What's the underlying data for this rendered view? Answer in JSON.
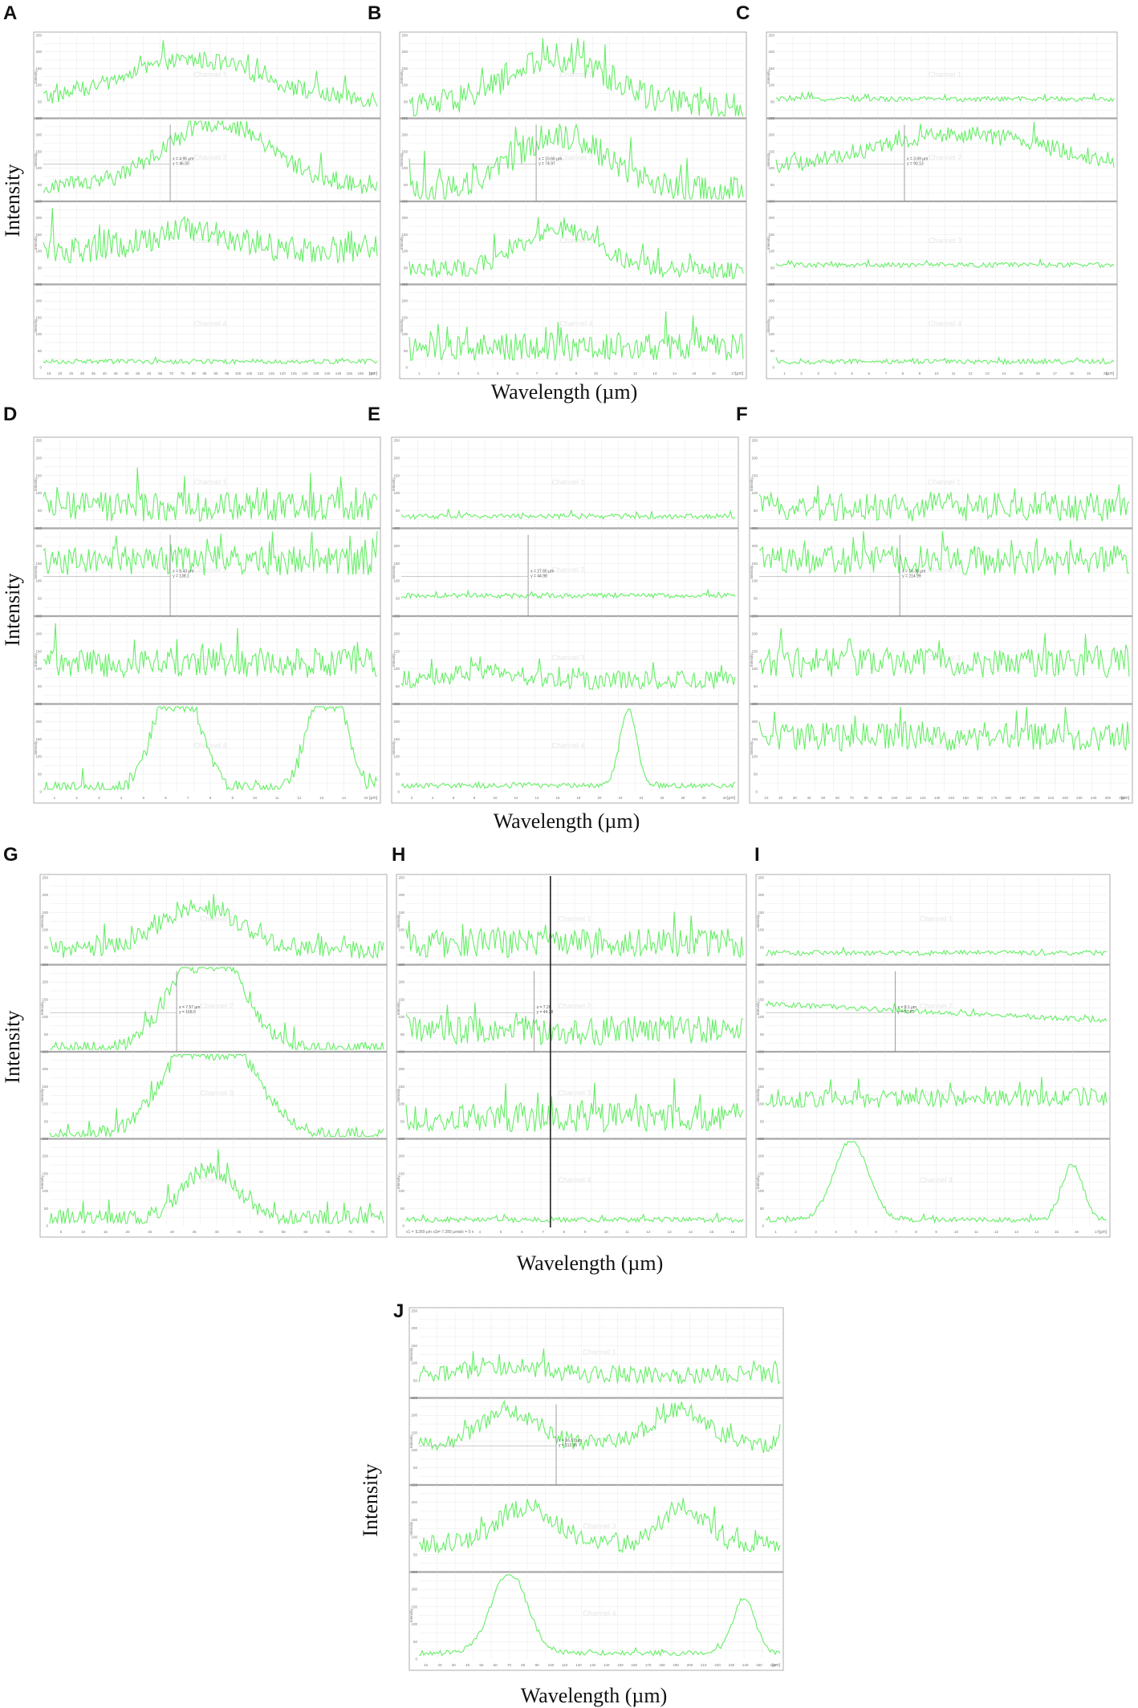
{
  "figure": {
    "line_color": "#66ee66",
    "frame_color": "#999999",
    "grid_color": "#e8e8e8",
    "separator_color": "#a8a8a8"
  },
  "chart_data": [
    {
      "panel": "A",
      "type": "line",
      "n_subplots": 4,
      "profiles": [
        "broad hump, moderate",
        "broad hump, high peaks near centre",
        "irregular mid-level with spikes",
        "near baseline, small spikes"
      ],
      "x_ticks": [
        "15",
        "20",
        "25",
        "30",
        "35",
        "40",
        "45",
        "50",
        "55",
        "60",
        "65",
        "70",
        "75",
        "80",
        "85",
        "90",
        "95",
        "100",
        "105",
        "110",
        "115",
        "120",
        "125",
        "130",
        "135",
        "140",
        "145",
        "150",
        "155",
        "160"
      ],
      "x_unit": "[µm]",
      "cursor_label": [
        "x = 4.95 µm",
        "y = 46.00"
      ]
    },
    {
      "panel": "B",
      "type": "line",
      "n_subplots": 4,
      "profiles": [
        "spiky mid hump",
        "spiky central hump",
        "moderate central hump",
        "low noisy"
      ],
      "x_ticks": [
        "1",
        "2",
        "3",
        "4",
        "5",
        "6",
        "7",
        "8",
        "9",
        "10",
        "11",
        "12",
        "13",
        "14",
        "15",
        "16",
        "17"
      ],
      "x_unit": "[µm]",
      "cursor_label": [
        "x = 10.66 µm",
        "y = 74.97"
      ]
    },
    {
      "panel": "C",
      "type": "line",
      "n_subplots": 4,
      "profiles": [
        "flat low",
        "broad high plateau",
        "low flat",
        "baseline"
      ],
      "x_ticks": [
        "1",
        "2",
        "3",
        "4",
        "5",
        "6",
        "7",
        "8",
        "9",
        "10",
        "11",
        "12",
        "13",
        "14",
        "15",
        "16",
        "17",
        "18",
        "19",
        "20"
      ],
      "x_unit": "[µm]",
      "cursor_label": [
        "x = 3.69 µm",
        "y = 90.13"
      ]
    },
    {
      "panel": "D",
      "type": "line",
      "n_subplots": 4,
      "profiles": [
        "low noisy",
        "high noisy",
        "mid noisy",
        "saturated double peak"
      ],
      "x_ticks": [
        "1",
        "2",
        "3",
        "4",
        "5",
        "6",
        "7",
        "8",
        "9",
        "10",
        "11",
        "12",
        "13",
        "14",
        "15"
      ],
      "x_unit": "[µm]",
      "cursor_label": [
        "x = 8.43 µm",
        "y = 138.1"
      ]
    },
    {
      "panel": "E",
      "type": "line",
      "n_subplots": 4,
      "profiles": [
        "flat baseline",
        "low flat",
        "low wavy",
        "baseline with single peak"
      ],
      "x_ticks": [
        "2",
        "4",
        "6",
        "8",
        "10",
        "12",
        "14",
        "16",
        "18",
        "20",
        "22",
        "24",
        "26",
        "28",
        "30",
        "32"
      ],
      "x_unit": "[µm]",
      "cursor_label": [
        "x = 27.65 µm",
        "y = 44.98"
      ]
    },
    {
      "panel": "F",
      "type": "line",
      "n_subplots": 4,
      "profiles": [
        "low noisy",
        "high noisy",
        "mid noisy",
        "high noisy"
      ],
      "x_ticks": [
        "10",
        "20",
        "30",
        "40",
        "50",
        "60",
        "70",
        "80",
        "90",
        "100",
        "110",
        "120",
        "130",
        "140",
        "150",
        "160",
        "170",
        "180",
        "190",
        "200",
        "210",
        "220",
        "230",
        "240",
        "250",
        "260"
      ],
      "x_unit": "[µm]",
      "cursor_label": [
        "x = 15.39 µm",
        "y = 214.99"
      ]
    },
    {
      "panel": "G",
      "type": "line",
      "n_subplots": 4,
      "profiles": [
        "central hump",
        "saturated central peak",
        "saturated central plateau",
        "low central hump"
      ],
      "x_ticks": [
        "5",
        "10",
        "15",
        "20",
        "25",
        "30",
        "35",
        "40",
        "45",
        "50",
        "55",
        "60",
        "65",
        "70",
        "75"
      ],
      "x_unit": "",
      "cursor_label": [
        "x = 7.57 µm",
        "y = 168.0"
      ]
    },
    {
      "panel": "H",
      "type": "line",
      "n_subplots": 4,
      "profiles": [
        "low spiky",
        "low spiky",
        "low spiky",
        "baseline"
      ],
      "x_ticks": [
        "1",
        "2",
        "3",
        "4",
        "5",
        "6",
        "7",
        "8",
        "9",
        "10",
        "11",
        "12",
        "13",
        "14",
        "15",
        "16"
      ],
      "x_unit": "",
      "cursor_label": [
        "x = 7.28",
        "y = 44.28"
      ],
      "footer": "x1 = 7.289 µm    x2 = 7.289 µm    dx = 0 n"
    },
    {
      "panel": "I",
      "type": "line",
      "n_subplots": 4,
      "profiles": [
        "flat",
        "mid decreasing then flat",
        "mid wavy",
        "baseline with two peaks"
      ],
      "x_ticks": [
        "1",
        "2",
        "3",
        "4",
        "5",
        "6",
        "7",
        "8",
        "9",
        "10",
        "11",
        "12",
        "13",
        "14",
        "15",
        "16",
        "17"
      ],
      "x_unit": "[µm]",
      "cursor_label": [
        "x = 8.1 µm",
        "y = 57.81"
      ]
    },
    {
      "panel": "J",
      "type": "line",
      "n_subplots": 4,
      "profiles": [
        "low wavy",
        "two high humps",
        "two humps",
        "baseline with two peaks"
      ],
      "x_ticks": [
        "10",
        "20",
        "30",
        "40",
        "50",
        "60",
        "70",
        "80",
        "90",
        "100",
        "110",
        "120",
        "130",
        "140",
        "150",
        "160",
        "170",
        "180",
        "190",
        "200",
        "210",
        "220",
        "230",
        "240",
        "250",
        "260"
      ],
      "x_unit": "[µm]",
      "cursor_label": [
        "x = 16.37 µm",
        "y = 112.96"
      ]
    }
  ],
  "labels": {
    "intensity": "Intensity",
    "wavelength": "Wavelength (µm)"
  }
}
